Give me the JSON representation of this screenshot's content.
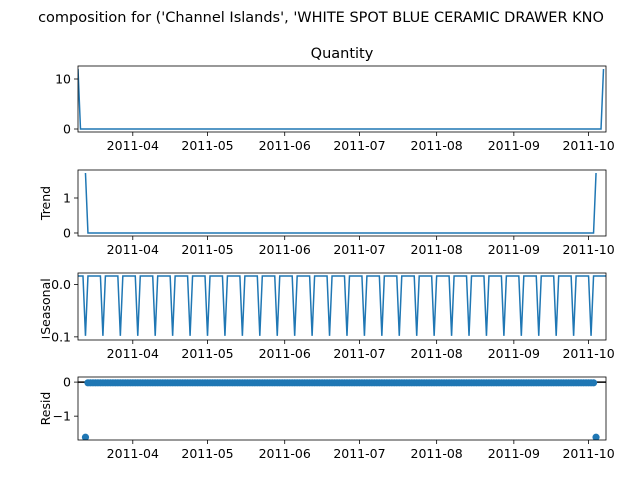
{
  "page": {
    "suptitle": "composition for ('Channel Islands', 'WHITE SPOT BLUE CERAMIC DRAWER KNO"
  },
  "chart_data": [
    {
      "type": "line",
      "panel": "observed",
      "title": "Quantity",
      "ylabel": "",
      "x_range": [
        "2011-03-10",
        "2011-10-08"
      ],
      "x_ticks": [
        "2011-04",
        "2011-05",
        "2011-06",
        "2011-07",
        "2011-08",
        "2011-09",
        "2011-10"
      ],
      "ylim": [
        -0.6,
        12.6
      ],
      "y_ticks": [
        0,
        10
      ],
      "series": [
        {
          "values": [
            {
              "x": "2011-03-10",
              "y": 12
            },
            {
              "x": "2011-03-11",
              "y": 0
            },
            {
              "x": "2011-10-06",
              "y": 0
            },
            {
              "x": "2011-10-07",
              "y": 12
            }
          ]
        }
      ],
      "color": "#1f77b4"
    },
    {
      "type": "line",
      "panel": "trend",
      "title": "",
      "ylabel": "Trend",
      "x_range": [
        "2011-03-10",
        "2011-10-08"
      ],
      "x_ticks": [
        "2011-04",
        "2011-05",
        "2011-06",
        "2011-07",
        "2011-08",
        "2011-09",
        "2011-10"
      ],
      "ylim": [
        -0.086,
        1.8
      ],
      "y_ticks": [
        0,
        1
      ],
      "series": [
        {
          "values": [
            {
              "x": "2011-03-13",
              "y": 1.714
            },
            {
              "x": "2011-03-14",
              "y": 0
            },
            {
              "x": "2011-10-03",
              "y": 0
            },
            {
              "x": "2011-10-04",
              "y": 1.714
            }
          ]
        }
      ],
      "color": "#1f77b4"
    },
    {
      "type": "line",
      "panel": "seasonal",
      "title": "",
      "ylabel": "Seasonal",
      "x_range": [
        "2011-03-10",
        "2011-10-08"
      ],
      "x_ticks": [
        "2011-04",
        "2011-05",
        "2011-06",
        "2011-07",
        "2011-08",
        "2011-09",
        "2011-10"
      ],
      "ylim": [
        -0.106,
        0.022
      ],
      "y_ticks": [
        0.0,
        -0.1
      ],
      "period_days": 7,
      "weekly_pattern": [
        0.0163,
        0.0163,
        0.0163,
        -0.098,
        0.0163,
        0.0163,
        0.0163
      ],
      "color": "#1f77b4"
    },
    {
      "type": "scatter",
      "panel": "resid",
      "title": "",
      "ylabel": "Resid",
      "x_range": [
        "2011-03-10",
        "2011-10-08"
      ],
      "x_ticks": [
        "2011-04",
        "2011-05",
        "2011-06",
        "2011-07",
        "2011-08",
        "2011-09",
        "2011-10"
      ],
      "ylim": [
        -1.7,
        0.15
      ],
      "y_ticks": [
        0,
        -1
      ],
      "baseline": 0,
      "resid_start": "2011-03-13",
      "resid_end": "2011-10-04",
      "resid_default": -0.02,
      "outliers": [
        {
          "x": "2011-03-13",
          "y": -1.62
        },
        {
          "x": "2011-10-04",
          "y": -1.62
        }
      ],
      "color": "#1f77b4"
    }
  ]
}
